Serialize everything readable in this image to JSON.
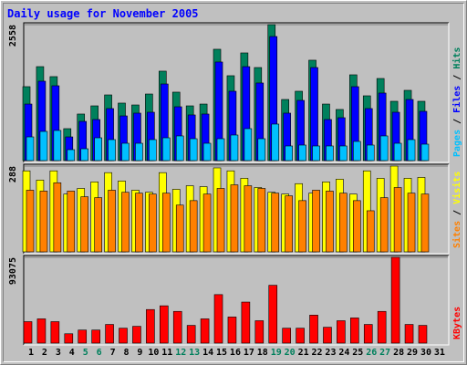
{
  "title": "Daily usage for November 2005",
  "categories": [
    "1",
    "2",
    "3",
    "4",
    "5",
    "6",
    "7",
    "8",
    "9",
    "10",
    "11",
    "12",
    "13",
    "14",
    "15",
    "16",
    "17",
    "18",
    "19",
    "20",
    "21",
    "22",
    "23",
    "24",
    "25",
    "26",
    "27",
    "28",
    "29",
    "30",
    "31"
  ],
  "category_colors": [
    "#000000",
    "#000000",
    "#000000",
    "#000000",
    "#00805c",
    "#00805c",
    "#000000",
    "#000000",
    "#000000",
    "#000000",
    "#000000",
    "#00805c",
    "#00805c",
    "#000000",
    "#000000",
    "#000000",
    "#000000",
    "#000000",
    "#00805c",
    "#00805c",
    "#000000",
    "#000000",
    "#000000",
    "#000000",
    "#000000",
    "#00805c",
    "#00805c",
    "#000000",
    "#000000",
    "#000000",
    "#000000"
  ],
  "legend_separator": " / ",
  "chart_data": [
    {
      "type": "bar",
      "ylim": [
        0,
        2558
      ],
      "yticks": [
        2558
      ],
      "series": [
        {
          "name": "Hits",
          "color": "#00805c",
          "values": [
            1391,
            1768,
            1580,
            601,
            876,
            1030,
            1236,
            1082,
            1047,
            1253,
            1683,
            1288,
            1030,
            1064,
            2095,
            1597,
            2026,
            1751,
            2558,
            1150,
            1305,
            1889,
            1064,
            962,
            1614,
            1219,
            1545,
            1116,
            1322,
            1116,
            null
          ]
        },
        {
          "name": "Files",
          "color": "#0000ff",
          "values": [
            1064,
            1494,
            1408,
            446,
            738,
            773,
            979,
            841,
            893,
            910,
            1442,
            1013,
            859,
            876,
            1855,
            1305,
            1768,
            1460,
            2335,
            893,
            1133,
            1751,
            773,
            807,
            1391,
            979,
            1271,
            910,
            1150,
            927,
            null
          ]
        },
        {
          "name": "Pages",
          "color": "#00c0ff",
          "values": [
            446,
            549,
            567,
            206,
            223,
            429,
            395,
            326,
            326,
            395,
            429,
            464,
            412,
            326,
            412,
            481,
            601,
            412,
            687,
            275,
            292,
            275,
            275,
            275,
            361,
            292,
            464,
            326,
            395,
            309,
            null
          ]
        }
      ]
    },
    {
      "type": "bar",
      "ylim": [
        0,
        288
      ],
      "yticks": [
        288
      ],
      "series": [
        {
          "name": "Visits",
          "color": "#ffff00",
          "values": [
            272,
            241,
            272,
            194,
            213,
            235,
            266,
            238,
            207,
            200,
            266,
            210,
            222,
            219,
            282,
            272,
            247,
            216,
            200,
            194,
            229,
            197,
            235,
            244,
            194,
            272,
            247,
            288,
            247,
            250,
            null
          ]
        },
        {
          "name": "Sites",
          "color": "#ff8000",
          "values": [
            207,
            204,
            232,
            204,
            185,
            182,
            207,
            200,
            197,
            194,
            197,
            157,
            172,
            194,
            213,
            225,
            222,
            213,
            197,
            188,
            172,
            207,
            204,
            197,
            172,
            138,
            182,
            216,
            197,
            194,
            null
          ]
        }
      ]
    },
    {
      "type": "bar",
      "ylim": [
        0,
        93075
      ],
      "yticks": [
        93075
      ],
      "series": [
        {
          "name": "KBytes",
          "color": "#ff0000",
          "values": [
            23276,
            26312,
            23276,
            10120,
            14168,
            14168,
            20240,
            16192,
            18216,
            36432,
            40480,
            34408,
            19228,
            26312,
            52624,
            28336,
            44528,
            24288,
            62744,
            16192,
            16192,
            30360,
            17204,
            24288,
            27324,
            20240,
            34408,
            93075,
            20240,
            19228,
            null
          ]
        }
      ]
    }
  ]
}
